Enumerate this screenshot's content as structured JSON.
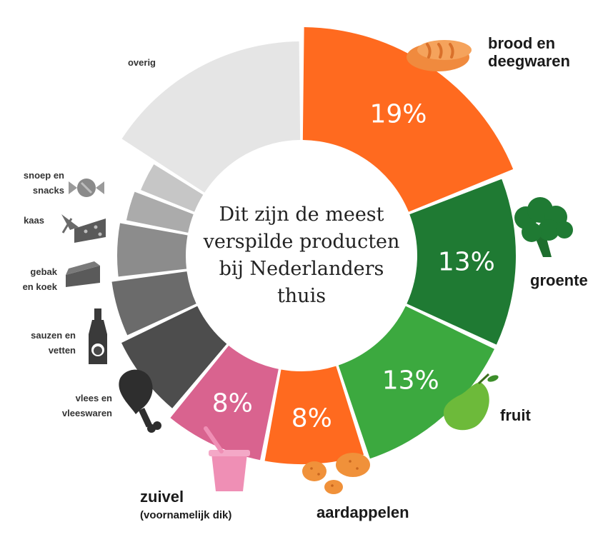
{
  "chart_data": {
    "type": "donut",
    "title_lines": [
      "Dit zijn de meest",
      "verspilde producten",
      "bij Nederlanders",
      "thuis"
    ],
    "categories": [
      "brood en deegwaren",
      "groente",
      "fruit",
      "aardappelen",
      "zuivel",
      "vlees en vleeswaren",
      "sauzen en vetten",
      "gebak en koek",
      "kaas",
      "snoep en snacks",
      "overig"
    ],
    "values": [
      19,
      13,
      13,
      8,
      8,
      7,
      5,
      5,
      3,
      3,
      16
    ],
    "segments": [
      {
        "name": "brood en deegwaren",
        "lines": [
          "brood en",
          "deegwaren"
        ],
        "value": 19,
        "value_label": "19%",
        "color": "#FF6A1F",
        "icon": "bread-icon"
      },
      {
        "name": "groente",
        "lines": [
          "groente"
        ],
        "value": 13,
        "value_label": "13%",
        "color": "#1F7A33",
        "icon": "broccoli-icon"
      },
      {
        "name": "fruit",
        "lines": [
          "fruit"
        ],
        "value": 13,
        "value_label": "13%",
        "color": "#3CA93F",
        "icon": "pear-icon"
      },
      {
        "name": "aardappelen",
        "lines": [
          "aardappelen"
        ],
        "value": 8,
        "value_label": "8%",
        "color": "#FF6A1F",
        "icon": "potato-icon"
      },
      {
        "name": "zuivel",
        "lines": [
          "zuivel"
        ],
        "sub": "(voornamelijk dik)",
        "value": 8,
        "value_label": "8%",
        "color": "#D9638F",
        "icon": "yoghurt-cup-icon"
      },
      {
        "name": "vlees en vleeswaren",
        "lines": [
          "vlees en",
          "vleeswaren"
        ],
        "value": 7,
        "color": "#4D4D4D",
        "icon": "drumstick-icon"
      },
      {
        "name": "sauzen en vetten",
        "lines": [
          "sauzen en",
          "vetten"
        ],
        "value": 5,
        "color": "#6B6B6B",
        "icon": "sauce-bottle-icon"
      },
      {
        "name": "gebak en koek",
        "lines": [
          "gebak",
          "en koek"
        ],
        "value": 5,
        "color": "#8C8C8C",
        "icon": "cake-slice-icon"
      },
      {
        "name": "kaas",
        "lines": [
          "kaas"
        ],
        "value": 3,
        "color": "#ABABAB",
        "icon": "cheese-icon"
      },
      {
        "name": "snoep en snacks",
        "lines": [
          "snoep en",
          "snacks"
        ],
        "value": 3,
        "color": "#C6C6C6",
        "icon": "candy-icon"
      },
      {
        "name": "overig",
        "lines": [
          "overig"
        ],
        "value": 16,
        "color": "#E5E5E5",
        "icon": ""
      }
    ]
  }
}
